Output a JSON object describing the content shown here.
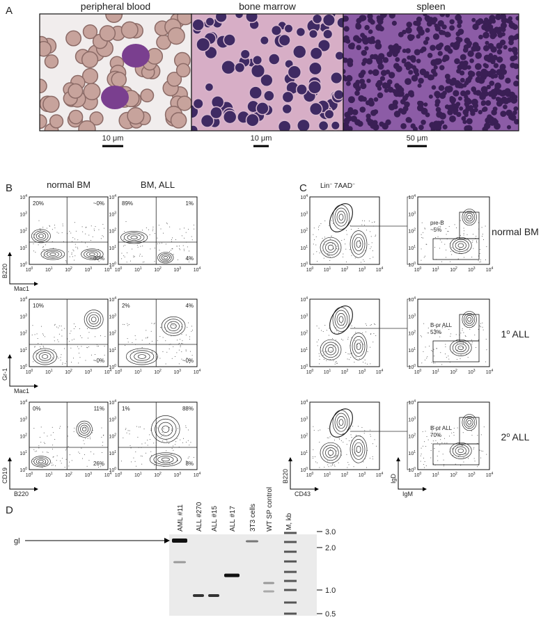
{
  "panel_a": {
    "label": "A",
    "images": [
      {
        "title": "peripheral blood",
        "scale": "10 μm"
      },
      {
        "title": "bone marrow",
        "scale": "10 μm"
      },
      {
        "title": "spleen",
        "scale": "50 μm"
      }
    ]
  },
  "tick": [
    "10",
    [
      "0",
      "1",
      "2",
      "3",
      "4"
    ]
  ],
  "panel_b": {
    "label": "B",
    "columns": [
      "normal BM",
      "BM, ALL"
    ],
    "rows": [
      {
        "y_axis": "B220",
        "x_axis": "Mac1",
        "plots": [
          {
            "upper_left": "20%",
            "upper_right": "~0%",
            "lower_right": "80%"
          },
          {
            "upper_left": "89%",
            "upper_right": "1%",
            "lower_right": "4%"
          }
        ]
      },
      {
        "y_axis": "Gr-1",
        "x_axis": "Mac1",
        "plots": [
          {
            "upper_left": "10%",
            "lower_right": "~0%"
          },
          {
            "upper_left": "2%",
            "upper_right": "4%",
            "lower_right": "~0%"
          }
        ]
      },
      {
        "y_axis": "CD19",
        "x_axis": "B220",
        "plots": [
          {
            "upper_left": "0%",
            "upper_right": "11%",
            "lower_right": "26%"
          },
          {
            "upper_left": "1%",
            "upper_right": "88%",
            "lower_right": "8%"
          }
        ]
      }
    ]
  },
  "panel_c": {
    "label": "C",
    "header": [
      "Lin",
      "−",
      " 7AAD",
      "−"
    ],
    "axes": {
      "left_y": "B220",
      "left_x": "CD43",
      "right_y": "IgD",
      "right_x": "IgM"
    },
    "rows": [
      {
        "name": [
          "normal BM"
        ],
        "gate": [
          "pre-B",
          "~5%"
        ]
      },
      {
        "name": [
          "1",
          "o",
          " ALL"
        ],
        "gate": [
          "B-pr ALL",
          "53%"
        ]
      },
      {
        "name": [
          "2",
          "o",
          " ALL"
        ],
        "gate": [
          "B-pr ALL",
          "70%"
        ]
      }
    ]
  },
  "panel_d": {
    "label": "D",
    "lanes": [
      "AML #11",
      "ALL #270",
      "ALL #15",
      "ALL #17",
      "3T3 cells",
      "WT SP control"
    ],
    "marker": "M, kb",
    "band": "gl",
    "sizes": [
      "3.0",
      "2.0",
      "1.0",
      "0.5"
    ]
  }
}
